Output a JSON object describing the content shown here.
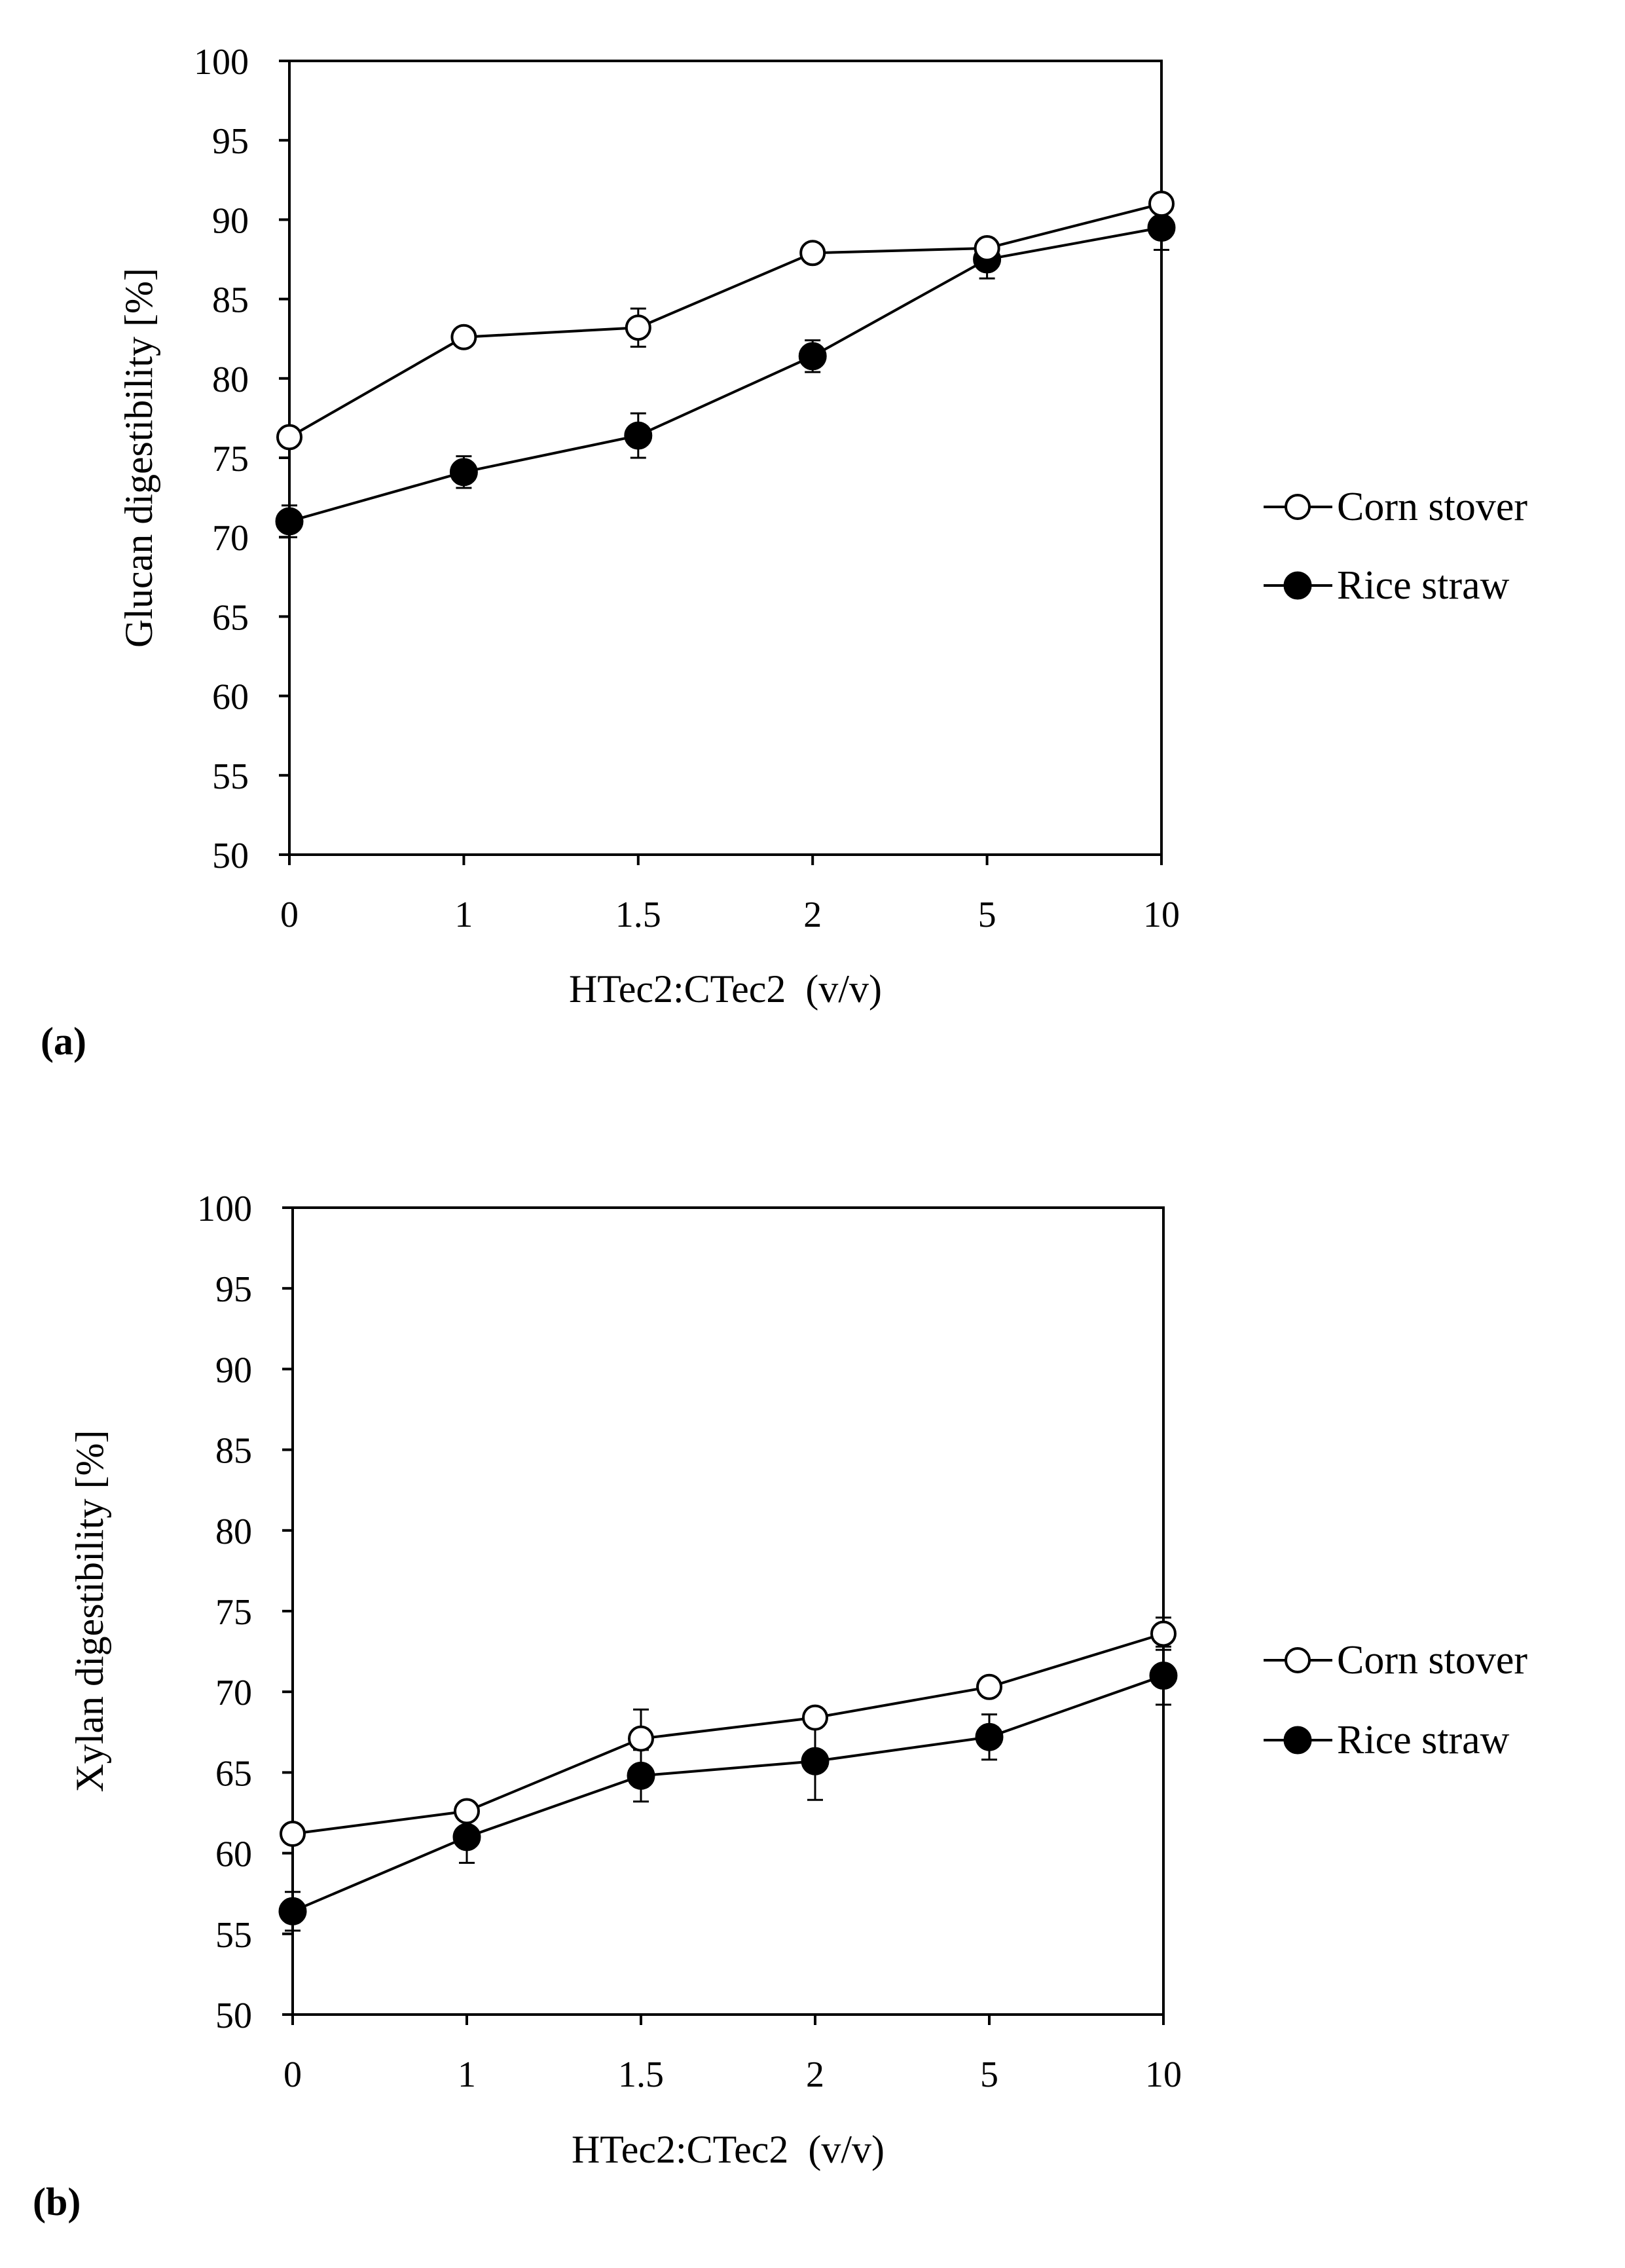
{
  "chart_data": [
    {
      "type": "line",
      "panel_label": "(a)",
      "title": "",
      "categories": [
        "0",
        "1",
        "1.5",
        "2",
        "5",
        "10"
      ],
      "xlabel": "HTec2:CTec2  (v/v)",
      "ylabel": "Glucan digestibility [%]",
      "ylim": [
        50,
        100
      ],
      "yticks": [
        50,
        55,
        60,
        65,
        70,
        75,
        80,
        85,
        90,
        95,
        100
      ],
      "grid": false,
      "legend_position": "right",
      "series": [
        {
          "name": "Corn stover",
          "marker": "open-circle",
          "values": [
            76.3,
            82.6,
            83.2,
            87.9,
            88.2,
            91.0
          ],
          "errors": [
            0.4,
            0.3,
            1.2,
            0.4,
            0.4,
            0.5
          ]
        },
        {
          "name": "Rice straw",
          "marker": "filled-circle",
          "values": [
            71.0,
            74.1,
            76.4,
            81.4,
            87.5,
            89.5
          ],
          "errors": [
            1.0,
            1.0,
            1.4,
            1.0,
            1.2,
            1.4
          ]
        }
      ]
    },
    {
      "type": "line",
      "panel_label": "(b)",
      "title": "",
      "categories": [
        "0",
        "1",
        "1.5",
        "2",
        "5",
        "10"
      ],
      "xlabel": "HTec2:CTec2  (v/v)",
      "ylabel": "Xylan digestibility [%]",
      "ylim": [
        50,
        100
      ],
      "yticks": [
        50,
        55,
        60,
        65,
        70,
        75,
        80,
        85,
        90,
        95,
        100
      ],
      "grid": false,
      "legend_position": "right",
      "series": [
        {
          "name": "Corn stover",
          "marker": "open-circle",
          "values": [
            61.2,
            62.6,
            67.1,
            68.4,
            70.3,
            73.6
          ],
          "errors": [
            0.5,
            0.4,
            1.8,
            0.5,
            0.5,
            1.0
          ]
        },
        {
          "name": "Rice straw",
          "marker": "filled-circle",
          "values": [
            56.4,
            61.0,
            64.8,
            65.7,
            67.2,
            71.0
          ],
          "errors": [
            1.2,
            1.6,
            1.6,
            2.4,
            1.4,
            1.8
          ]
        }
      ]
    }
  ]
}
